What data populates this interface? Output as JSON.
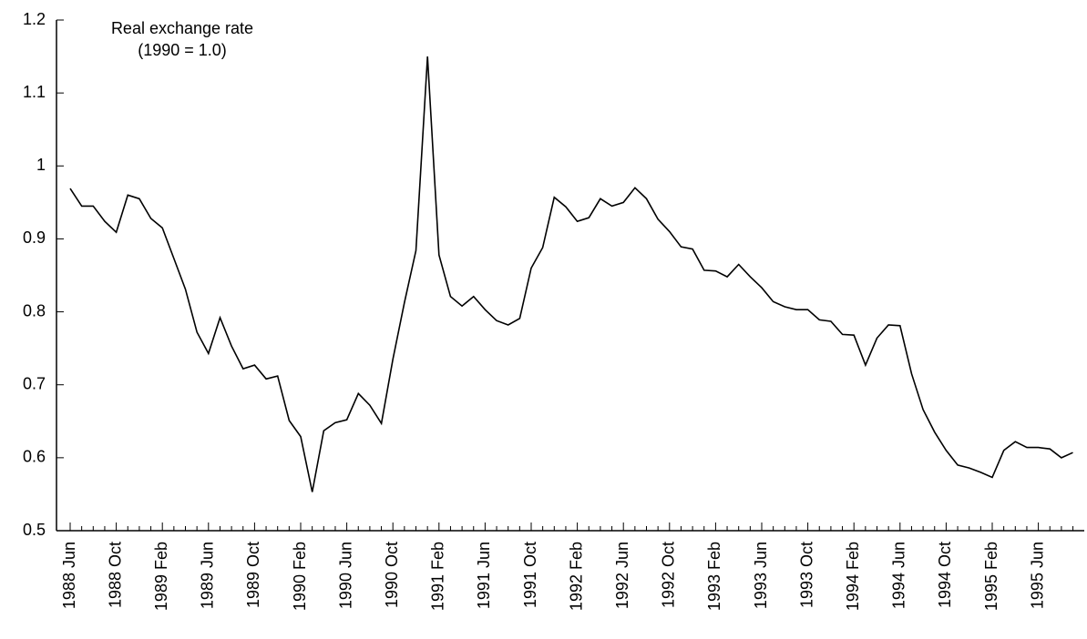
{
  "chart_data": {
    "type": "line",
    "annotation": [
      "Real exchange rate",
      "(1990 = 1.0)"
    ],
    "categories": [
      "1988 Jun",
      null,
      null,
      null,
      "1988 Oct",
      null,
      null,
      null,
      "1989 Feb",
      null,
      null,
      null,
      "1989 Jun",
      null,
      null,
      null,
      "1989 Oct",
      null,
      null,
      null,
      "1990 Feb",
      null,
      null,
      null,
      "1990 Jun",
      null,
      null,
      null,
      "1990 Oct",
      null,
      null,
      null,
      "1991 Feb",
      null,
      null,
      null,
      "1991 Jun",
      null,
      null,
      null,
      "1991 Oct",
      null,
      null,
      null,
      "1992 Feb",
      null,
      null,
      null,
      "1992 Jun",
      null,
      null,
      null,
      "1992 Oct",
      null,
      null,
      null,
      "1993 Feb",
      null,
      null,
      null,
      "1993 Jun",
      null,
      null,
      null,
      "1993 Oct",
      null,
      null,
      null,
      "1994 Feb",
      null,
      null,
      null,
      "1994 Jun",
      null,
      null,
      null,
      "1994 Oct",
      null,
      null,
      null,
      "1995 Feb",
      null,
      null,
      null,
      "1995 Jun",
      null,
      null,
      null
    ],
    "values": [
      0.969,
      0.945,
      0.945,
      0.924,
      0.909,
      0.96,
      0.955,
      0.928,
      0.915,
      0.873,
      0.831,
      0.772,
      0.743,
      0.792,
      0.753,
      0.722,
      0.727,
      0.708,
      0.712,
      0.651,
      0.629,
      0.553,
      0.637,
      0.648,
      0.652,
      0.688,
      0.672,
      0.647,
      0.735,
      0.813,
      0.884,
      1.15,
      0.878,
      0.821,
      0.808,
      0.821,
      0.803,
      0.788,
      0.782,
      0.791,
      0.86,
      0.888,
      0.957,
      0.944,
      0.924,
      0.929,
      0.955,
      0.945,
      0.95,
      0.97,
      0.955,
      0.927,
      0.91,
      0.889,
      0.886,
      0.857,
      0.856,
      0.848,
      0.865,
      0.848,
      0.833,
      0.814,
      0.807,
      0.803,
      0.803,
      0.789,
      0.787,
      0.769,
      0.768,
      0.727,
      0.764,
      0.782,
      0.781,
      0.715,
      0.666,
      0.635,
      0.61,
      0.59,
      0.586,
      0.58,
      0.573,
      0.61,
      0.622,
      0.614,
      0.614,
      0.612,
      0.6,
      0.607
    ],
    "color": "#000000",
    "ylim": [
      0.5,
      1.2
    ],
    "yticks": [
      0.5,
      0.6,
      0.7,
      0.8,
      0.9,
      1,
      1.1,
      1.2
    ],
    "grid": false
  }
}
